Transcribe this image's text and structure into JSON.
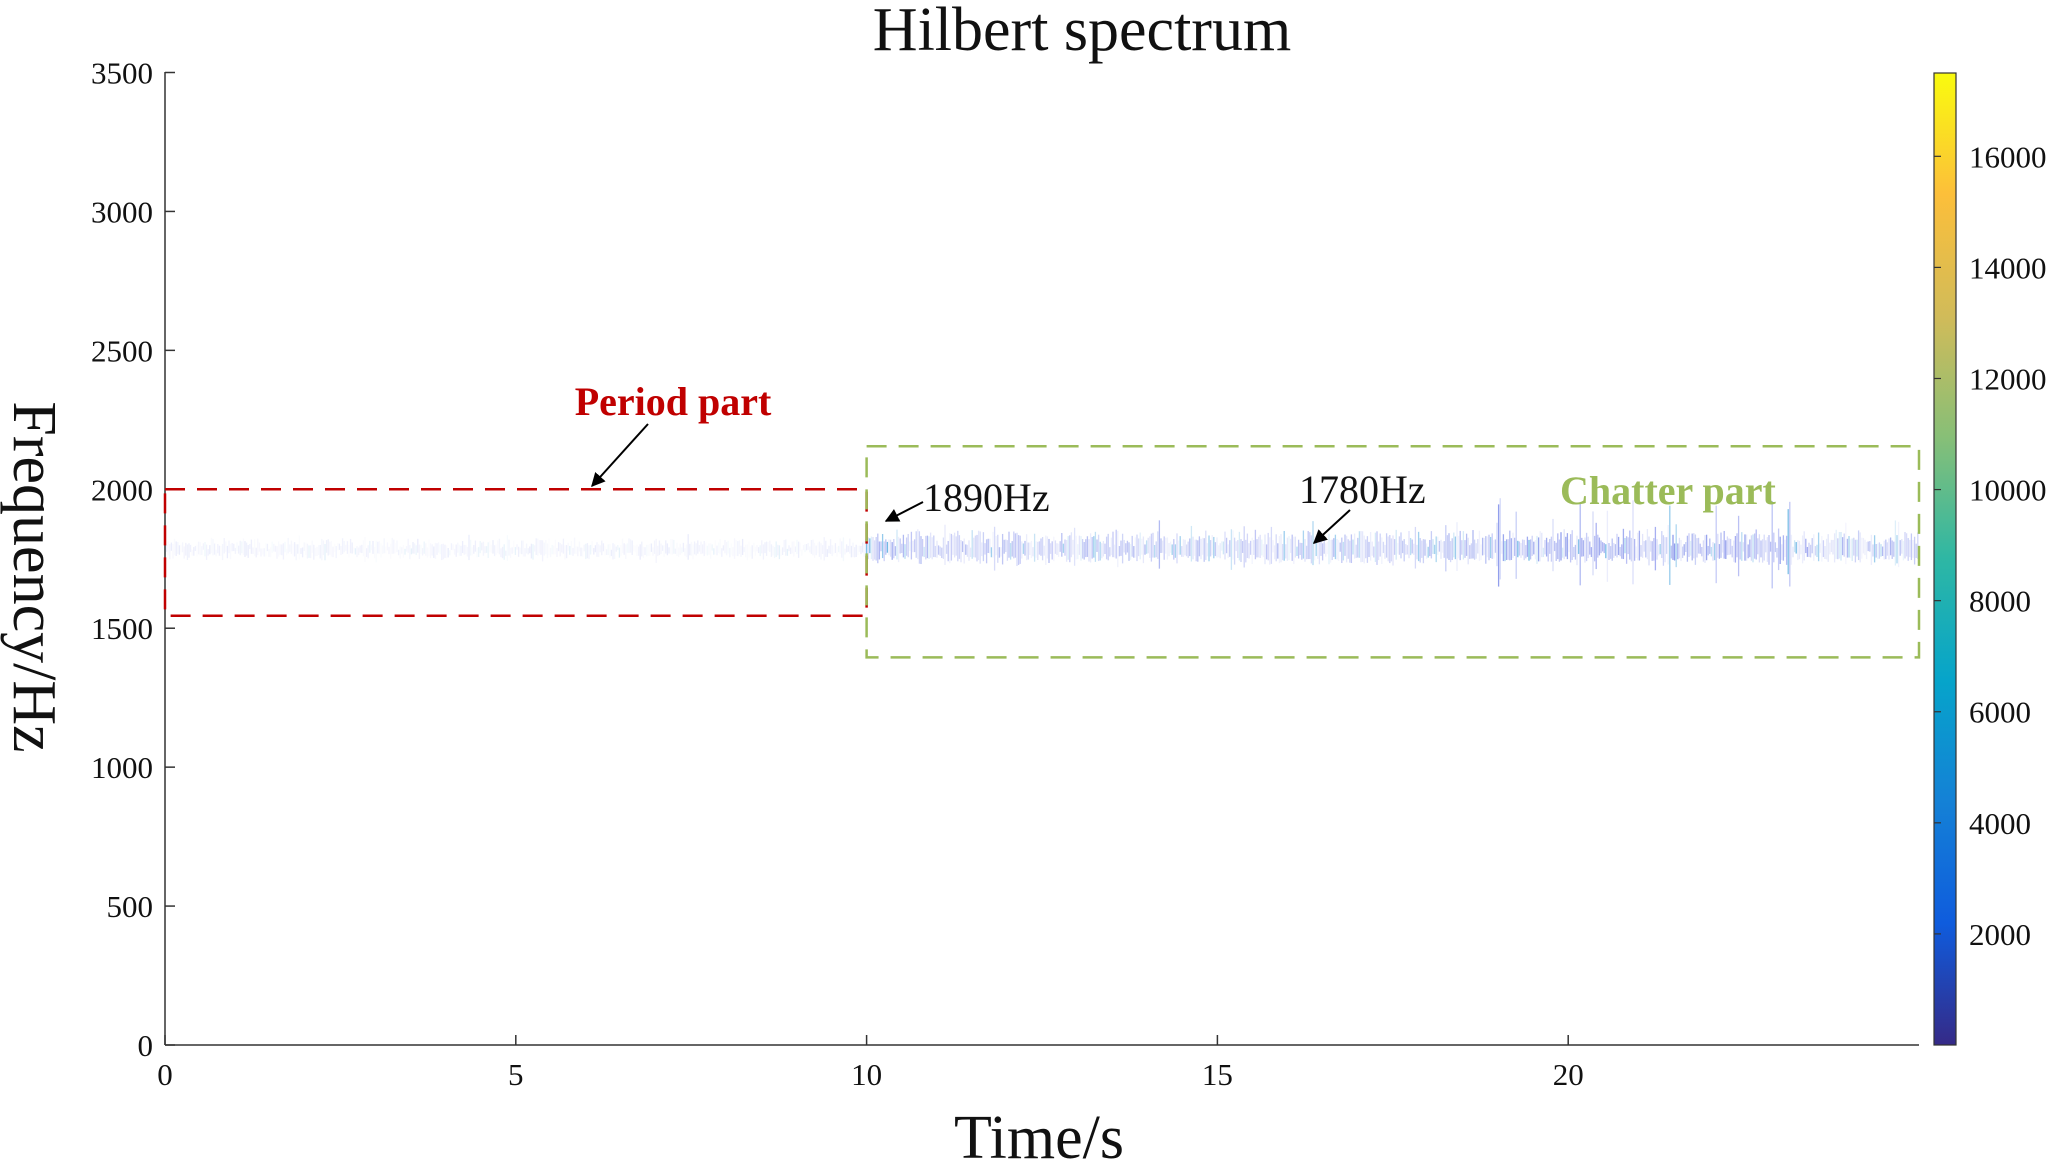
{
  "chart_data": {
    "type": "heatmap",
    "title": "Hilbert spectrum",
    "xlabel": "Time/s",
    "ylabel": "Frequency/Hz",
    "xlim": [
      0,
      25
    ],
    "ylim": [
      0,
      3500
    ],
    "xticks": [
      0,
      5,
      10,
      15,
      20
    ],
    "xtick_labels": [
      "0",
      "5",
      "10",
      "15",
      "20"
    ],
    "yticks": [
      0,
      500,
      1000,
      1500,
      2000,
      2500,
      3000,
      3500
    ],
    "ytick_labels": [
      "0",
      "500",
      "1000",
      "1500",
      "2000",
      "2500",
      "3000",
      "3500"
    ],
    "colorbar": {
      "range": [
        0,
        17500
      ],
      "ticks": [
        2000,
        4000,
        6000,
        8000,
        10000,
        12000,
        14000,
        16000
      ],
      "tick_labels": [
        "2000",
        "4000",
        "6000",
        "8000",
        "10000",
        "12000",
        "14000",
        "16000"
      ],
      "colormap": "parula",
      "colors": [
        "#352a87",
        "#0f5cdd",
        "#1481d6",
        "#06a4ca",
        "#2eb7a4",
        "#87bf77",
        "#d1bb59",
        "#fcbf3a",
        "#f9fb0e"
      ]
    },
    "grid": false,
    "ridges": [
      {
        "name": "period",
        "t_range": [
          0,
          10
        ],
        "center_freq": 1780,
        "spread": 60,
        "intensity": 0.12
      },
      {
        "name": "chatter",
        "t_range": [
          10,
          25
        ],
        "center_freq": 1780,
        "spread": 110,
        "intensity": 0.45
      }
    ],
    "regions": [
      {
        "label": "Period part",
        "t_range": [
          0,
          10
        ],
        "f_range": [
          1545,
          2000
        ],
        "color": "#c00000"
      },
      {
        "label": "Chatter part",
        "t_range": [
          10,
          25
        ],
        "f_range": [
          1395,
          2155
        ],
        "color": "#9bbb59"
      }
    ],
    "annotations": [
      {
        "text": "1890Hz",
        "t": 10.2,
        "f": 1890
      },
      {
        "text": "1780Hz",
        "t": 16.3,
        "f": 1780
      }
    ]
  }
}
